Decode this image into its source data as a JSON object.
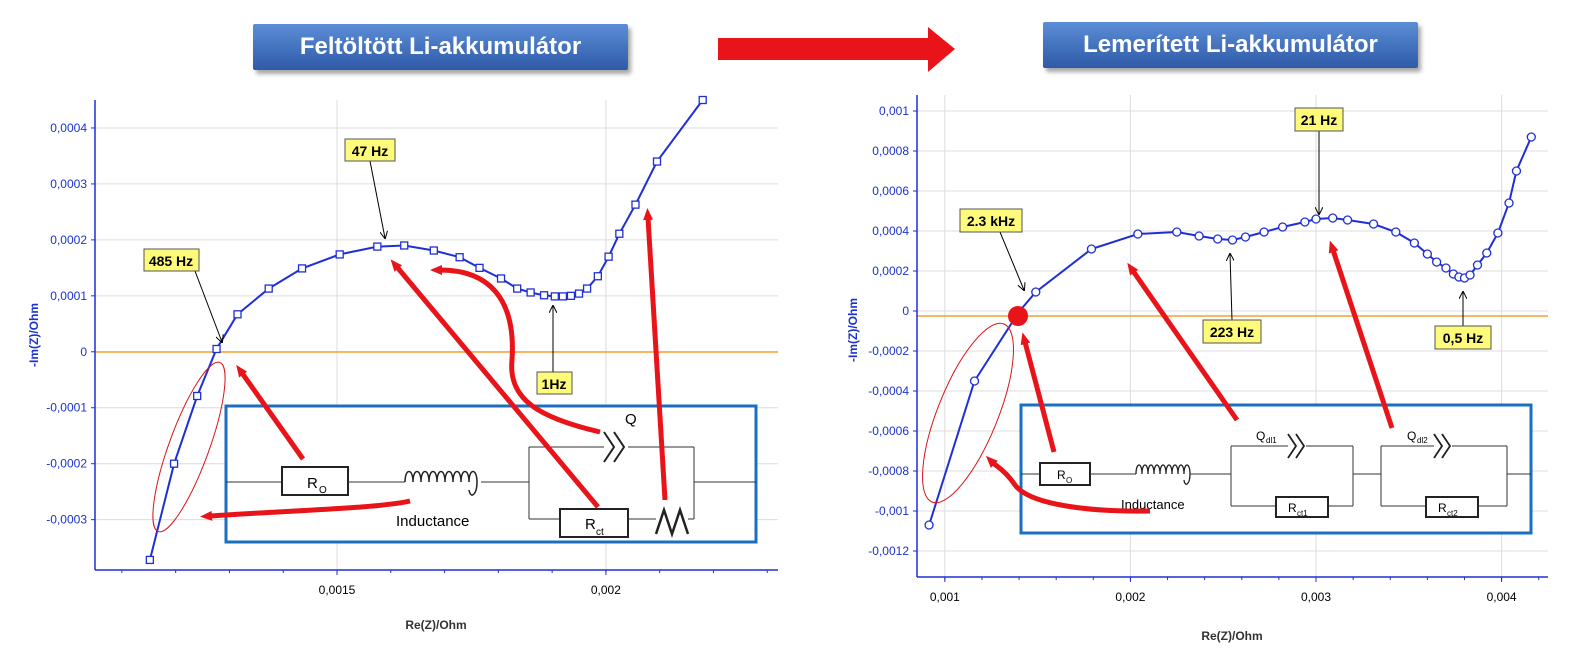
{
  "left_banner": "Feltöltött Li-akkumulátor",
  "right_banner": "Lemerített Li-akkumulátor",
  "colors": {
    "series": "#1f2fd6",
    "zero_line": "#f5a033",
    "arrow": "#e8141a",
    "box": "#1a6fc0",
    "banner": "#3566b8",
    "callout": "#fffb7a",
    "grid": "#d9d9d9"
  },
  "chart_data": [
    {
      "type": "line",
      "xlabel": "Re(Z)/Ohm",
      "ylabel": "-Im(Z)/Ohm",
      "xlim": [
        0.00105,
        0.00232
      ],
      "ylim": [
        -0.00039,
        0.00045
      ],
      "x_ticks": [
        0.0015,
        0.002
      ],
      "x_tick_labels": [
        "0,0015",
        "0,002"
      ],
      "y_ticks": [
        0.0004,
        0.0003,
        0.0002,
        0.0001,
        0,
        -0.0001,
        -0.0002,
        -0.0003
      ],
      "y_tick_labels": [
        "0,0004",
        "0,0003",
        "0,0002",
        "0,0001",
        "0",
        "-0,0001",
        "-0,0002",
        "-0,0003"
      ],
      "grid": true,
      "marker": "square",
      "series": [
        {
          "values": [
            [
              0.001152,
              -0.000372
            ],
            [
              0.001197,
              -0.0002
            ],
            [
              0.00124,
              -7.9e-05
            ],
            [
              0.001276,
              5e-06
            ],
            [
              0.001315,
              6.7e-05
            ],
            [
              0.001373,
              0.000113
            ],
            [
              0.001435,
              0.000149
            ],
            [
              0.001505,
              0.000174
            ],
            [
              0.001575,
              0.000188
            ],
            [
              0.001625,
              0.00019
            ],
            [
              0.00168,
              0.000181
            ],
            [
              0.001728,
              0.000169
            ],
            [
              0.001765,
              0.00015
            ],
            [
              0.001805,
              0.000131
            ],
            [
              0.001835,
              0.000113
            ],
            [
              0.00186,
              0.000106
            ],
            [
              0.001885,
              0.000101
            ],
            [
              0.001905,
              9.9e-05
            ],
            [
              0.00192,
              9.9e-05
            ],
            [
              0.001935,
              0.0001
            ],
            [
              0.00195,
              0.000104
            ],
            [
              0.001965,
              0.000113
            ],
            [
              0.001985,
              0.000135
            ],
            [
              0.002005,
              0.00017
            ],
            [
              0.002025,
              0.000211
            ],
            [
              0.002055,
              0.000263
            ],
            [
              0.002095,
              0.00034
            ],
            [
              0.00218,
              0.00045
            ]
          ]
        }
      ],
      "annotations": [
        {
          "text": "485 Hz",
          "at": [
            0.001276,
            5e-06
          ]
        },
        {
          "text": "47 Hz",
          "at": [
            0.001625,
            0.00019
          ]
        },
        {
          "text": "1Hz",
          "at": [
            0.00192,
            9.9e-05
          ]
        }
      ],
      "circuit": {
        "labels": [
          "R",
          "O",
          "Inductance",
          "Q",
          "R",
          "ct"
        ]
      }
    },
    {
      "type": "line",
      "xlabel": "Re(Z)/Ohm",
      "ylabel": "-Im(Z)/Ohm",
      "xlim": [
        0.00085,
        0.00425
      ],
      "ylim": [
        -0.00133,
        0.00108
      ],
      "x_ticks": [
        0.001,
        0.002,
        0.003,
        0.004
      ],
      "x_tick_labels": [
        "0,001",
        "0,002",
        "0,003",
        "0,004"
      ],
      "y_ticks": [
        0.001,
        0.0008,
        0.0006,
        0.0004,
        0.0002,
        0,
        -0.0002,
        -0.0004,
        -0.0006,
        -0.0008,
        -0.001,
        -0.0012
      ],
      "y_tick_labels": [
        "0,001",
        "0,0008",
        "0,0006",
        "0,0004",
        "0,0002",
        "0",
        "-0,0002",
        "-0,0004",
        "-0,0006",
        "-0,0008",
        "-0,001",
        "-0,0012"
      ],
      "grid": true,
      "marker": "circle",
      "series": [
        {
          "values": [
            [
              0.000915,
              -0.00107
            ],
            [
              0.00116,
              -0.00035
            ],
            [
              0.0014,
              -3e-06
            ],
            [
              0.00149,
              9.5e-05
            ],
            [
              0.00179,
              0.00031
            ],
            [
              0.00204,
              0.000385
            ],
            [
              0.00225,
              0.000395
            ],
            [
              0.00237,
              0.000375
            ],
            [
              0.00247,
              0.00036
            ],
            [
              0.00255,
              0.000355
            ],
            [
              0.00262,
              0.00037
            ],
            [
              0.00272,
              0.000395
            ],
            [
              0.00282,
              0.00042
            ],
            [
              0.00294,
              0.000445
            ],
            [
              0.003,
              0.00046
            ],
            [
              0.00309,
              0.000465
            ],
            [
              0.00317,
              0.000455
            ],
            [
              0.00331,
              0.000435
            ],
            [
              0.00343,
              0.000395
            ],
            [
              0.00353,
              0.00034
            ],
            [
              0.0036,
              0.000285
            ],
            [
              0.00365,
              0.000245
            ],
            [
              0.0037,
              0.000215
            ],
            [
              0.00374,
              0.000185
            ],
            [
              0.00377,
              0.00017
            ],
            [
              0.0038,
              0.000165
            ],
            [
              0.00383,
              0.00018
            ],
            [
              0.00387,
              0.00023
            ],
            [
              0.00392,
              0.00029
            ],
            [
              0.00398,
              0.00039
            ],
            [
              0.00404,
              0.00054
            ],
            [
              0.00408,
              0.0007
            ],
            [
              0.00416,
              0.00087
            ]
          ]
        }
      ],
      "annotations": [
        {
          "text": "2.3 kHz",
          "at": [
            0.00149,
            9.5e-05
          ]
        },
        {
          "text": "21 Hz",
          "at": [
            0.003,
            0.00046
          ]
        },
        {
          "text": "223 Hz",
          "at": [
            0.00255,
            0.000355
          ]
        },
        {
          "text": "0,5 Hz",
          "at": [
            0.0038,
            0.000165
          ]
        }
      ],
      "circuit": {
        "labels": [
          "R",
          "O",
          "Inductance",
          "Q",
          "dl1",
          "R",
          "ct1",
          "Q",
          "dl2",
          "R",
          "ct2"
        ]
      }
    }
  ]
}
